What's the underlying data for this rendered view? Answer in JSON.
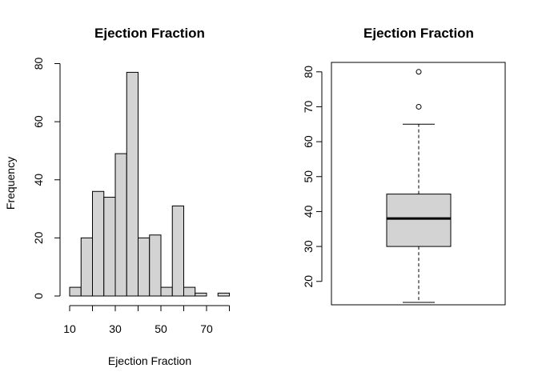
{
  "chart_data": [
    {
      "type": "histogram",
      "title": "Ejection Fraction",
      "xlabel": "Ejection Fraction",
      "ylabel": "Frequency",
      "bins": [
        {
          "from": 10,
          "to": 15,
          "count": 3
        },
        {
          "from": 15,
          "to": 20,
          "count": 20
        },
        {
          "from": 20,
          "to": 25,
          "count": 36
        },
        {
          "from": 25,
          "to": 30,
          "count": 34
        },
        {
          "from": 30,
          "to": 35,
          "count": 49
        },
        {
          "from": 35,
          "to": 40,
          "count": 77
        },
        {
          "from": 40,
          "to": 45,
          "count": 20
        },
        {
          "from": 45,
          "to": 50,
          "count": 21
        },
        {
          "from": 50,
          "to": 55,
          "count": 3
        },
        {
          "from": 55,
          "to": 60,
          "count": 31
        },
        {
          "from": 60,
          "to": 65,
          "count": 3
        },
        {
          "from": 65,
          "to": 70,
          "count": 1
        },
        {
          "from": 70,
          "to": 75,
          "count": 0
        },
        {
          "from": 75,
          "to": 80,
          "count": 1
        }
      ],
      "xticks": [
        10,
        20,
        30,
        40,
        50,
        60,
        70,
        80
      ],
      "xtick_labels": [
        "10",
        "",
        "30",
        "",
        "50",
        "",
        "70",
        ""
      ],
      "yticks": [
        0,
        20,
        40,
        60,
        80
      ],
      "ytick_labels": [
        "0",
        "20",
        "40",
        "60",
        "80"
      ],
      "xlim": [
        10,
        80
      ],
      "ylim": [
        0,
        80
      ],
      "bar_color": "#d3d3d3",
      "edge_color": "#000000",
      "grid": false
    },
    {
      "type": "boxplot",
      "title": "Ejection Fraction",
      "whisker_low": 14,
      "q1": 30,
      "median": 38,
      "q3": 45,
      "whisker_high": 65,
      "outliers": [
        70,
        80
      ],
      "yticks": [
        20,
        30,
        40,
        50,
        60,
        70,
        80
      ],
      "ytick_labels": [
        "20",
        "30",
        "40",
        "50",
        "60",
        "70",
        "80"
      ],
      "ylim": [
        13.3,
        82.7
      ],
      "box_color": "#d3d3d3",
      "grid": false
    }
  ]
}
